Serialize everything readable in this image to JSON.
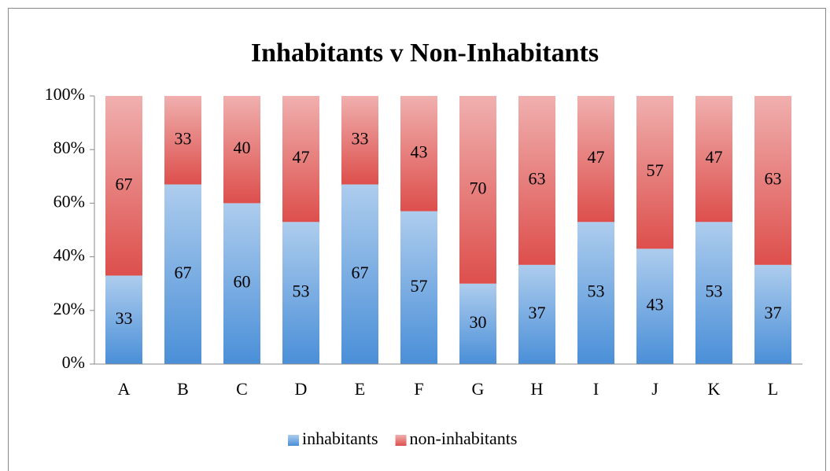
{
  "chart_data": {
    "type": "stacked_bar",
    "title": "Inhabitants v Non-Inhabitants",
    "categories": [
      "A",
      "B",
      "C",
      "D",
      "E",
      "F",
      "G",
      "H",
      "I",
      "J",
      "K",
      "L"
    ],
    "series": [
      {
        "name": "inhabitants",
        "color": "#4a8fd8",
        "values": [
          33,
          67,
          60,
          53,
          67,
          57,
          30,
          37,
          53,
          43,
          53,
          37
        ]
      },
      {
        "name": "non-inhabitants",
        "color": "#dd4f4c",
        "values": [
          67,
          33,
          40,
          47,
          33,
          43,
          70,
          63,
          47,
          57,
          47,
          63
        ]
      }
    ],
    "ylim": [
      0,
      100
    ],
    "yticks": [
      {
        "value": 0,
        "label": "0%"
      },
      {
        "value": 20,
        "label": "20%"
      },
      {
        "value": 40,
        "label": "40%"
      },
      {
        "value": 60,
        "label": "60%"
      },
      {
        "value": 80,
        "label": "80%"
      },
      {
        "value": 100,
        "label": "100%"
      }
    ],
    "legend": "bottom"
  }
}
